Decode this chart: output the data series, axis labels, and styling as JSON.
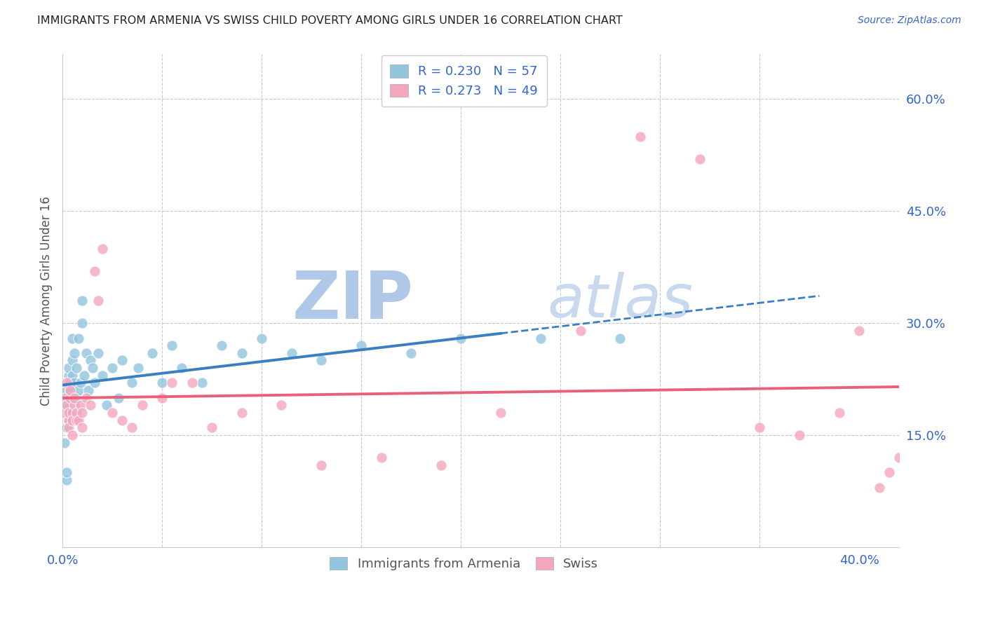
{
  "title": "IMMIGRANTS FROM ARMENIA VS SWISS CHILD POVERTY AMONG GIRLS UNDER 16 CORRELATION CHART",
  "source": "Source: ZipAtlas.com",
  "ylabel": "Child Poverty Among Girls Under 16",
  "xlim": [
    0.0,
    0.42
  ],
  "ylim": [
    0.0,
    0.66
  ],
  "yticks": [
    0.15,
    0.3,
    0.45,
    0.6
  ],
  "ytick_labels": [
    "15.0%",
    "30.0%",
    "45.0%",
    "60.0%"
  ],
  "color_blue": "#92c5de",
  "color_pink": "#f4a6bc",
  "color_line_blue": "#3a7fc1",
  "color_line_pink": "#e8607a",
  "color_grid": "#c8c8c8",
  "color_title": "#222222",
  "color_ylabel": "#555555",
  "color_tick": "#3366cc",
  "color_source": "#3366cc",
  "watermark_zip_color": "#b0c8e8",
  "watermark_atlas_color": "#c8d8ee",
  "background_color": "#ffffff",
  "armenia_x": [
    0.001,
    0.001,
    0.002,
    0.002,
    0.002,
    0.002,
    0.003,
    0.003,
    0.003,
    0.003,
    0.003,
    0.004,
    0.004,
    0.004,
    0.004,
    0.005,
    0.005,
    0.005,
    0.006,
    0.006,
    0.006,
    0.007,
    0.007,
    0.008,
    0.008,
    0.009,
    0.01,
    0.01,
    0.011,
    0.012,
    0.013,
    0.014,
    0.015,
    0.016,
    0.018,
    0.02,
    0.022,
    0.025,
    0.028,
    0.03,
    0.035,
    0.038,
    0.045,
    0.05,
    0.055,
    0.06,
    0.07,
    0.08,
    0.09,
    0.1,
    0.115,
    0.13,
    0.15,
    0.175,
    0.2,
    0.24,
    0.28
  ],
  "armenia_y": [
    0.19,
    0.14,
    0.09,
    0.1,
    0.21,
    0.16,
    0.17,
    0.2,
    0.23,
    0.19,
    0.24,
    0.21,
    0.22,
    0.2,
    0.18,
    0.23,
    0.25,
    0.28,
    0.2,
    0.22,
    0.26,
    0.2,
    0.24,
    0.21,
    0.28,
    0.22,
    0.3,
    0.33,
    0.23,
    0.26,
    0.21,
    0.25,
    0.24,
    0.22,
    0.26,
    0.23,
    0.19,
    0.24,
    0.2,
    0.25,
    0.22,
    0.24,
    0.26,
    0.22,
    0.27,
    0.24,
    0.22,
    0.27,
    0.26,
    0.28,
    0.26,
    0.25,
    0.27,
    0.26,
    0.28,
    0.28,
    0.28
  ],
  "swiss_x": [
    0.001,
    0.001,
    0.002,
    0.002,
    0.003,
    0.003,
    0.003,
    0.004,
    0.004,
    0.005,
    0.005,
    0.005,
    0.006,
    0.006,
    0.007,
    0.007,
    0.008,
    0.009,
    0.01,
    0.01,
    0.012,
    0.014,
    0.016,
    0.018,
    0.02,
    0.025,
    0.03,
    0.035,
    0.04,
    0.05,
    0.055,
    0.065,
    0.075,
    0.09,
    0.11,
    0.13,
    0.16,
    0.19,
    0.22,
    0.26,
    0.29,
    0.32,
    0.35,
    0.37,
    0.39,
    0.4,
    0.41,
    0.415,
    0.42
  ],
  "swiss_y": [
    0.2,
    0.18,
    0.19,
    0.22,
    0.17,
    0.18,
    0.16,
    0.2,
    0.21,
    0.18,
    0.15,
    0.17,
    0.19,
    0.2,
    0.17,
    0.18,
    0.17,
    0.19,
    0.16,
    0.18,
    0.2,
    0.19,
    0.37,
    0.33,
    0.4,
    0.18,
    0.17,
    0.16,
    0.19,
    0.2,
    0.22,
    0.22,
    0.16,
    0.18,
    0.19,
    0.11,
    0.12,
    0.11,
    0.18,
    0.29,
    0.55,
    0.52,
    0.16,
    0.15,
    0.18,
    0.29,
    0.08,
    0.1,
    0.12
  ]
}
